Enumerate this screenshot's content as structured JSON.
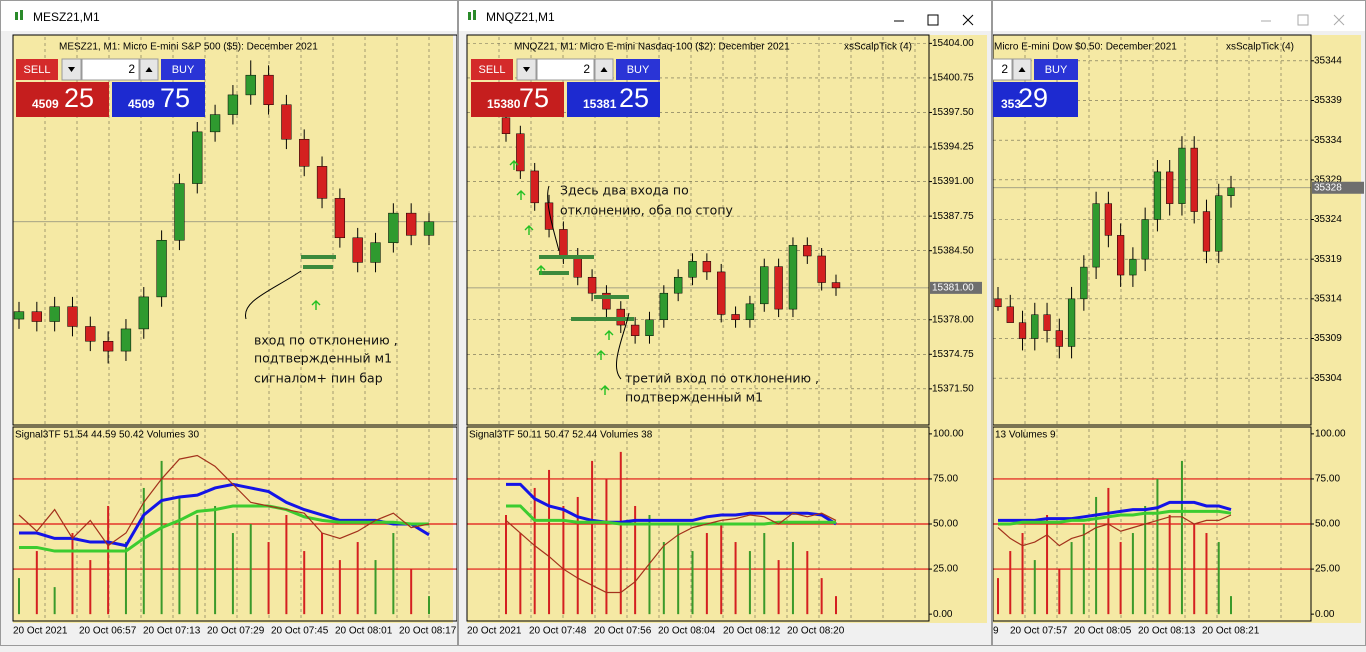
{
  "windows": [
    {
      "title": "MESZ21,M1",
      "info": "MESZ21, M1:  Micro E-mini S&P 500 ($5): December 2021",
      "trade_panel": {
        "sell": "SELL",
        "buy": "BUY",
        "lot": "2",
        "bid_main": "4509",
        "bid_pips": "25",
        "ask_main": "4509",
        "ask_pips": "75"
      },
      "chart_data": {
        "type": "candlestick",
        "ylim": [
          4501,
          4516.75
        ],
        "current_price": 4509.25,
        "candles": {
          "open": [
            4505.3,
            4505.6,
            4505.2,
            4505.8,
            4505.0,
            4504.4,
            4504.0,
            4504.9,
            4506.2,
            4508.5,
            4510.8,
            4512.9,
            4513.6,
            4514.4,
            4515.2,
            4514.0,
            4512.6,
            4511.5,
            4510.2,
            4508.6,
            4507.6,
            4508.4,
            4509.6,
            4508.7
          ],
          "high": [
            4506.0,
            4506.0,
            4506.2,
            4506.2,
            4505.4,
            4504.8,
            4505.3,
            4506.6,
            4508.9,
            4511.2,
            4513.3,
            4514.0,
            4514.8,
            4515.8,
            4515.6,
            4514.4,
            4513.0,
            4511.9,
            4510.6,
            4509.0,
            4508.8,
            4510.0,
            4510.0,
            4509.6
          ],
          "low": [
            4504.9,
            4504.8,
            4504.8,
            4504.6,
            4504.0,
            4503.5,
            4503.6,
            4504.5,
            4505.8,
            4508.1,
            4510.4,
            4512.5,
            4513.2,
            4514.0,
            4513.6,
            4512.2,
            4511.1,
            4509.8,
            4508.2,
            4507.2,
            4507.2,
            4508.0,
            4508.3,
            4508.3
          ],
          "close": [
            4505.6,
            4505.2,
            4505.8,
            4505.0,
            4504.4,
            4504.0,
            4504.9,
            4506.2,
            4508.5,
            4510.8,
            4512.9,
            4513.6,
            4514.4,
            4515.2,
            4514.0,
            4512.6,
            4511.5,
            4510.2,
            4508.6,
            4507.6,
            4508.4,
            4509.6,
            4508.7,
            4509.25
          ]
        },
        "x_labels": [
          "20 Oct 2021",
          "20 Oct 06:57",
          "20 Oct 07:13",
          "20 Oct 07:29",
          "20 Oct 07:45",
          "20 Oct 08:01",
          "20 Oct 08:17"
        ]
      },
      "indicator": {
        "type": "line",
        "info": "Signal3TF 51.54 44.59 50.42 Volumes 30",
        "ylim": [
          -3.8,
          102.7
        ],
        "levels": [
          75,
          50,
          25
        ],
        "series": [
          {
            "color": "#1414e6",
            "values": [
              45,
              45,
              42,
              42,
              40,
              40,
              38,
              55,
              63,
              65,
              66,
              70,
              72,
              70,
              68,
              62,
              58,
              55,
              52,
              52,
              52,
              50,
              50,
              44
            ]
          },
          {
            "color": "#3ccc30",
            "values": [
              37,
              37,
              35,
              35,
              35,
              35,
              35,
              42,
              48,
              52,
              57,
              58,
              60,
              60,
              60,
              58,
              54,
              52,
              51,
              51,
              51,
              51,
              50,
              50
            ]
          },
          {
            "color": "#a3321c",
            "values": [
              55,
              46,
              58,
              42,
              52,
              38,
              45,
              62,
              75,
              86,
              88,
              82,
              72,
              62,
              60,
              58,
              56,
              45,
              42,
              46,
              52,
              56,
              48,
              50
            ]
          }
        ],
        "volumes": [
          20,
          35,
          15,
          45,
          30,
          60,
          40,
          70,
          85,
          65,
          55,
          60,
          45,
          50,
          40,
          55,
          35,
          45,
          30,
          40,
          30,
          45,
          25,
          10
        ]
      },
      "annotations": [
        "вход по отклонению ,",
        "подтвержденный м1",
        "сигналом+ пин бар"
      ]
    },
    {
      "title": "MNQZ21,M1",
      "info": "MNQZ21, M1:  Micro E-mini Nasdaq-100 ($2): December 2021",
      "expert": "xsScalpTick (4)",
      "trade_panel": {
        "sell": "SELL",
        "buy": "BUY",
        "lot": "2",
        "bid_main": "15380",
        "bid_pips": "75",
        "ask_main": "15381",
        "ask_pips": "25"
      },
      "chart_data": {
        "type": "candlestick",
        "ylim": [
          15368.1,
          15404.6
        ],
        "yticks": [
          {
            "value": 15404,
            "label": "15404.00"
          },
          {
            "value": 15400.75,
            "label": "15400.75"
          },
          {
            "value": 15397.5,
            "label": "15397.50"
          },
          {
            "value": 15394.25,
            "label": "15394.25"
          },
          {
            "value": 15391,
            "label": "15391.00"
          },
          {
            "value": 15387.75,
            "label": "15387.75"
          },
          {
            "value": 15384.5,
            "label": "15384.50"
          },
          {
            "value": 15378,
            "label": "15378.00"
          },
          {
            "value": 15374.75,
            "label": "15374.75"
          },
          {
            "value": 15371.5,
            "label": "15371.50"
          }
        ],
        "current_price": {
          "value": 15381,
          "label": "15381.00"
        },
        "candles": {
          "open": [
            15397.0,
            15395.5,
            15392.0,
            15389.0,
            15386.5,
            15384.0,
            15382.0,
            15380.5,
            15379.0,
            15377.5,
            15376.5,
            15378.0,
            15380.5,
            15382.0,
            15383.5,
            15382.5,
            15378.5,
            15378.0,
            15379.5,
            15383.0,
            15379.0,
            15385.0,
            15384.0,
            15381.5
          ],
          "high": [
            15397.75,
            15396.25,
            15392.75,
            15389.75,
            15387.25,
            15384.75,
            15382.75,
            15381.25,
            15379.75,
            15378.25,
            15378.75,
            15381.25,
            15382.75,
            15384.25,
            15384.25,
            15383.25,
            15379.25,
            15380.25,
            15383.75,
            15383.75,
            15385.75,
            15385.75,
            15384.75,
            15382.25
          ],
          "low": [
            15394.75,
            15391.25,
            15388.25,
            15385.75,
            15383.25,
            15381.25,
            15379.75,
            15378.25,
            15376.75,
            15375.75,
            15375.75,
            15377.25,
            15379.75,
            15381.25,
            15381.75,
            15377.75,
            15377.25,
            15377.25,
            15378.75,
            15378.25,
            15378.25,
            15383.25,
            15380.75,
            15380.25
          ],
          "close": [
            15395.5,
            15392.0,
            15389.0,
            15386.5,
            15384.0,
            15382.0,
            15380.5,
            15379.0,
            15377.5,
            15376.5,
            15378.0,
            15380.5,
            15382.0,
            15383.5,
            15382.5,
            15378.5,
            15378.0,
            15379.5,
            15383.0,
            15379.0,
            15385.0,
            15384.0,
            15381.5,
            15381.0
          ]
        },
        "x_labels": [
          "20 Oct 2021",
          "20 Oct 07:48",
          "20 Oct 07:56",
          "20 Oct 08:04",
          "20 Oct 08:12",
          "20 Oct 08:20"
        ]
      },
      "indicator": {
        "type": "line",
        "info": "Signal3TF 50.11 50.47 52.44 Volumes 38",
        "ylim": [
          -3.8,
          102.7
        ],
        "levels": [
          75,
          50,
          25
        ],
        "yticks": [
          {
            "value": 100,
            "label": "100.00"
          },
          {
            "value": 75,
            "label": "75.00"
          },
          {
            "value": 50,
            "label": "50.00"
          },
          {
            "value": 25,
            "label": "25.00"
          },
          {
            "value": 0,
            "label": "0.00"
          }
        ],
        "series": [
          {
            "color": "#1414e6",
            "values": [
              72,
              72,
              64,
              60,
              58,
              54,
              52,
              51,
              51,
              52,
              52,
              52,
              52,
              52,
              54,
              55,
              55,
              56,
              56,
              56,
              56,
              56,
              55,
              50
            ]
          },
          {
            "color": "#3ccc30",
            "values": [
              60,
              60,
              52,
              52,
              52,
              51,
              51,
              51,
              50,
              50,
              50,
              50,
              50,
              50,
              50,
              50,
              50,
              50,
              50,
              51,
              51,
              51,
              51,
              51
            ]
          },
          {
            "color": "#a3321c",
            "values": [
              52,
              45,
              38,
              32,
              25,
              20,
              16,
              12,
              12,
              18,
              28,
              38,
              44,
              48,
              50,
              52,
              53,
              55,
              54,
              50,
              56,
              54,
              56,
              52
            ]
          }
        ],
        "volumes": [
          55,
          45,
          70,
          80,
          60,
          65,
          85,
          75,
          90,
          60,
          55,
          40,
          50,
          35,
          45,
          50,
          40,
          35,
          45,
          30,
          40,
          35,
          20,
          10
        ]
      },
      "annotations": [
        "Здесь два входа по",
        "отклонению, оба по стопу",
        "третий вход по отклонению ,",
        "подтвержденный м1"
      ]
    },
    {
      "info": "Micro E-mini Dow $0.50: December 2021",
      "expert": "xsScalpTick (4)",
      "trade_panel": {
        "buy": "BUY",
        "lot": "2",
        "ask_main": "353",
        "ask_pips": "29"
      },
      "chart_data": {
        "type": "candlestick",
        "ylim": [
          35298.1,
          35347
        ],
        "yticks": [
          35344,
          35339,
          35334,
          35329,
          35324,
          35319,
          35314,
          35309,
          35304
        ],
        "current_price": 35328,
        "candles": {
          "open": [
            35314,
            35313,
            35311,
            35309,
            35312,
            35310,
            35308,
            35314,
            35318,
            35326,
            35322,
            35317,
            35319,
            35324,
            35330,
            35326,
            35333,
            35325,
            35320,
            35327
          ],
          "high": [
            35315.5,
            35314.5,
            35312.5,
            35313.5,
            35313.5,
            35311.5,
            35315.5,
            35319.5,
            35327.5,
            35327.5,
            35323.5,
            35320.5,
            35325.5,
            35331.5,
            35331.5,
            35334.5,
            35334.5,
            35326.5,
            35328.5,
            35329.5
          ],
          "low": [
            35312.5,
            35311.5,
            35307.5,
            35307.5,
            35308.5,
            35306.5,
            35306.5,
            35312.5,
            35316.5,
            35320.5,
            35315.5,
            35315.5,
            35317.5,
            35322.5,
            35324.5,
            35324.5,
            35323.5,
            35318.5,
            35318.5,
            35325.5
          ],
          "close": [
            35313,
            35311,
            35309,
            35312,
            35310,
            35308,
            35314,
            35318,
            35326,
            35322,
            35317,
            35319,
            35324,
            35330,
            35326,
            35333,
            35325,
            35320,
            35327,
            35328
          ]
        },
        "x_labels": [
          "9",
          "20 Oct 07:57",
          "20 Oct 08:05",
          "20 Oct 08:13",
          "20 Oct 08:21"
        ]
      },
      "indicator": {
        "type": "line",
        "info": "13 Volumes 9",
        "ylim": [
          -3.8,
          102.7
        ],
        "levels": [
          75,
          50,
          25
        ],
        "yticks": [
          {
            "value": 100,
            "label": "100.00"
          },
          {
            "value": 75,
            "label": "75.00"
          },
          {
            "value": 50,
            "label": "50.00"
          },
          {
            "value": 25,
            "label": "25.00"
          },
          {
            "value": 0,
            "label": "0.00"
          }
        ],
        "series": [
          {
            "color": "#1414e6",
            "values": [
              52,
              52,
              52,
              52,
              53,
              53,
              53,
              54,
              55,
              56,
              57,
              58,
              58,
              59,
              62,
              62,
              62,
              60,
              60,
              58
            ]
          },
          {
            "color": "#3ccc30",
            "values": [
              50,
              50,
              51,
              51,
              51,
              51,
              52,
              52,
              53,
              54,
              55,
              55,
              56,
              56,
              57,
              57,
              57,
              57,
              57,
              56
            ]
          },
          {
            "color": "#a3321c",
            "values": [
              48,
              42,
              38,
              40,
              44,
              38,
              42,
              44,
              48,
              50,
              46,
              48,
              50,
              52,
              54,
              54,
              50,
              52,
              52,
              55
            ]
          }
        ],
        "volumes": [
          20,
          35,
          45,
          30,
          55,
          25,
          40,
          50,
          65,
          70,
          40,
          45,
          60,
          75,
          55,
          85,
          50,
          45,
          40,
          10
        ]
      }
    }
  ]
}
